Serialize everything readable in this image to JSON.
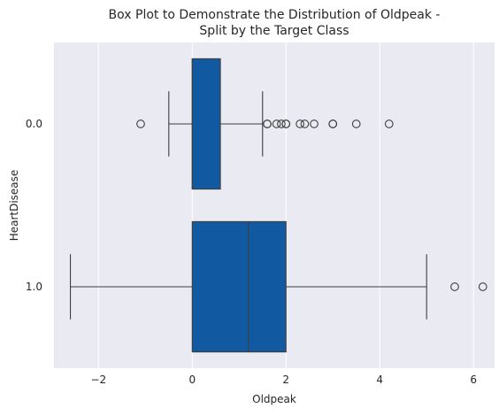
{
  "chart_data": {
    "type": "box",
    "orientation": "horizontal",
    "title_lines": [
      "Box Plot to Demonstrate the Distribution of Oldpeak -",
      "Split by the Target Class"
    ],
    "xlabel": "Oldpeak",
    "ylabel": "HeartDisease",
    "xlim": [
      -2.95,
      6.45
    ],
    "xticks": [
      -2,
      0,
      2,
      4,
      6
    ],
    "xtick_labels": [
      "−2",
      "0",
      "2",
      "4",
      "6"
    ],
    "grid": "vertical",
    "box_color": "#1159a0",
    "background_color": "#eaeaf2",
    "groups": [
      {
        "label": "0.0",
        "whisker_low": -0.5,
        "q1": 0.0,
        "median": 0.0,
        "q3": 0.6,
        "whisker_high": 1.5,
        "outliers": [
          -1.1,
          1.6,
          1.6,
          1.8,
          1.9,
          2.0,
          2.0,
          2.3,
          2.4,
          2.6,
          3.0,
          3.0,
          3.5,
          4.2
        ]
      },
      {
        "label": "1.0",
        "whisker_low": -2.6,
        "q1": 0.0,
        "median": 1.2,
        "q3": 2.0,
        "whisker_high": 5.0,
        "outliers": [
          5.6,
          6.2
        ]
      }
    ]
  }
}
